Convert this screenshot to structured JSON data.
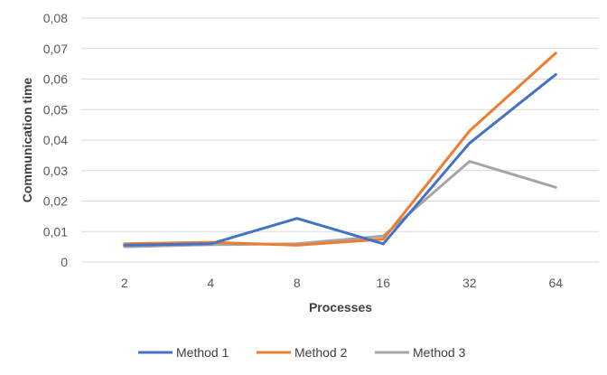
{
  "chart_data": {
    "type": "line",
    "categories": [
      "2",
      "4",
      "8",
      "16",
      "32",
      "64"
    ],
    "series": [
      {
        "name": "Method 1",
        "color": "#4472c4",
        "values": [
          0.0055,
          0.006,
          0.0143,
          0.006,
          0.039,
          0.0615
        ]
      },
      {
        "name": "Method 2",
        "color": "#ed7d31",
        "values": [
          0.006,
          0.0065,
          0.0055,
          0.0075,
          0.043,
          0.0685
        ]
      },
      {
        "name": "Method 3",
        "color": "#a5a5a5",
        "values": [
          0.005,
          0.0057,
          0.006,
          0.0085,
          0.033,
          0.0245
        ]
      }
    ],
    "yticks": [
      "0",
      "0,01",
      "0,02",
      "0,03",
      "0,04",
      "0,05",
      "0,06",
      "0,07",
      "0,08"
    ],
    "xlabel": "Processes",
    "ylabel": "Communication time",
    "ylim": [
      0,
      0.08
    ],
    "grid": true,
    "legend_position": "bottom"
  }
}
